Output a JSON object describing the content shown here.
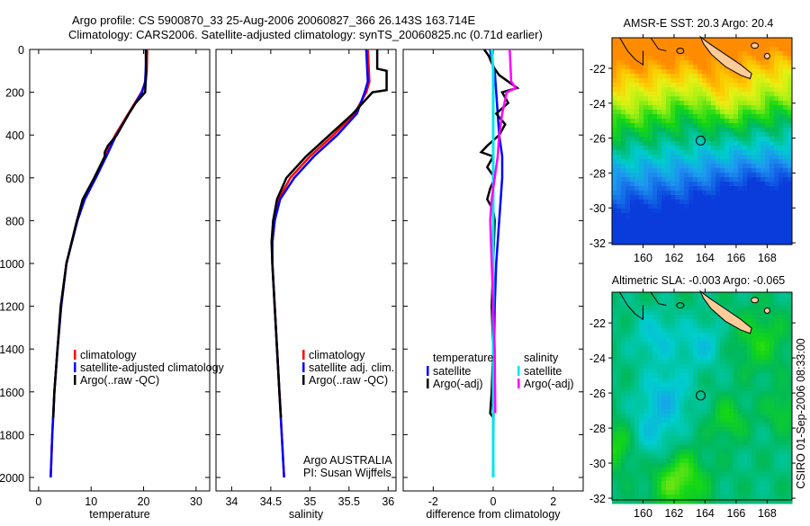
{
  "title_line1": "Argo profile: CS 5900870_33 25-Aug-2006 20060827_366 26.143S 163.714E",
  "title_line2": "Climatology: CARS2006. Satellite-adjusted climatology: synTS_20060825.nc (0.71d earlier)",
  "side_stamp": "CSIRO 01-Sep-2006 08:33:00",
  "colors": {
    "climatology": "#ff0000",
    "satellite": "#0000ff",
    "argo": "#000000",
    "sal_satellite": "#00e5ee",
    "sal_argo": "#ff00ff",
    "land": "#ffcc99"
  },
  "chart_data": [
    {
      "type": "line",
      "xlabel": "temperature",
      "ylabel": "",
      "xlim": [
        -1.7,
        32.6
      ],
      "ylim": [
        2063,
        0
      ],
      "xticks": [
        0,
        10,
        20,
        30
      ],
      "yticks": [
        0,
        200,
        400,
        600,
        800,
        1000,
        1200,
        1400,
        1600,
        1800,
        2000
      ],
      "legend": [
        "climatology",
        "satellite-adjusted climatology",
        "Argo(..raw -QC)"
      ],
      "legend_position": "lower-middle",
      "series": [
        {
          "name": "climatology",
          "color": "#ff0000",
          "depth": [
            0,
            100,
            150,
            200,
            300,
            400,
            500,
            600,
            700,
            800,
            1000,
            1200,
            1400,
            1600,
            1800,
            2000
          ],
          "values": [
            20.7,
            20.6,
            20.4,
            19.6,
            17.1,
            14.6,
            12.6,
            10.6,
            8.6,
            7.3,
            5.3,
            4.3,
            3.6,
            3.0,
            2.6,
            2.3
          ]
        },
        {
          "name": "satellite-adjusted climatology",
          "color": "#0000ff",
          "depth": [
            0,
            100,
            150,
            200,
            300,
            400,
            500,
            600,
            700,
            800,
            1000,
            1200,
            1400,
            1600,
            1800,
            2000
          ],
          "values": [
            20.5,
            20.4,
            20.3,
            19.7,
            17.2,
            14.8,
            12.9,
            10.9,
            8.8,
            7.4,
            5.3,
            4.3,
            3.6,
            3.0,
            2.6,
            2.3
          ]
        },
        {
          "name": "Argo(..raw -QC)",
          "color": "#000000",
          "depth": [
            0,
            100,
            200,
            250,
            300,
            400,
            450,
            480,
            500,
            600,
            700,
            800,
            1000,
            1200,
            1400,
            1600,
            1720
          ],
          "values": [
            20.4,
            20.5,
            20.3,
            18.5,
            17.2,
            14.9,
            13.2,
            12.6,
            12.6,
            10.6,
            8.4,
            7.3,
            5.3,
            4.2,
            3.6,
            3.0,
            2.8
          ]
        }
      ]
    },
    {
      "type": "line",
      "xlabel": "salinity",
      "xlim": [
        33.8,
        36.1
      ],
      "ylim": [
        2063,
        0
      ],
      "xticks": [
        34,
        34.5,
        35,
        35.5,
        36
      ],
      "xtick_labels": [
        "34",
        "34.5",
        "35",
        "35.5",
        "36"
      ],
      "legend": [
        "climatology",
        "satellite adj. clim.",
        "Argo(..raw -QC)"
      ],
      "annotation": [
        "Argo AUSTRALIA",
        "PI: Susan Wijffels"
      ],
      "series": [
        {
          "name": "climatology",
          "color": "#ff0000",
          "depth": [
            0,
            150,
            200,
            300,
            400,
            500,
            600,
            700,
            800,
            900,
            1000,
            1200,
            1400,
            1600,
            1800,
            2000
          ],
          "values": [
            35.74,
            35.76,
            35.72,
            35.57,
            35.3,
            35.0,
            34.75,
            34.6,
            34.55,
            34.52,
            34.52,
            34.55,
            34.58,
            34.61,
            34.64,
            34.67
          ]
        },
        {
          "name": "satellite adj. clim.",
          "color": "#0000ff",
          "depth": [
            0,
            150,
            200,
            300,
            400,
            500,
            600,
            700,
            800,
            900,
            1000,
            1200,
            1400,
            1600,
            1800,
            2000
          ],
          "values": [
            35.72,
            35.74,
            35.7,
            35.6,
            35.35,
            35.05,
            34.8,
            34.62,
            34.55,
            34.52,
            34.52,
            34.55,
            34.58,
            34.61,
            34.64,
            34.67
          ]
        },
        {
          "name": "Argo(..raw -QC)",
          "color": "#000000",
          "depth": [
            0,
            90,
            100,
            190,
            200,
            300,
            400,
            500,
            600,
            700,
            800,
            900,
            1000,
            1200,
            1400,
            1600,
            1720
          ],
          "values": [
            35.86,
            35.86,
            35.98,
            35.98,
            35.8,
            35.55,
            35.25,
            34.95,
            34.7,
            34.58,
            34.53,
            34.51,
            34.52,
            34.55,
            34.58,
            34.61,
            34.63
          ]
        }
      ]
    },
    {
      "type": "line",
      "xlabel": "difference from climatology",
      "xlim": [
        -3,
        3
      ],
      "ylim": [
        2063,
        0
      ],
      "xticks": [
        -2,
        0,
        2
      ],
      "legend_headers": [
        "temperature",
        "salinity"
      ],
      "legend": [
        "satellite",
        "Argo(-adj)",
        "satellite",
        "Argo(-adj)"
      ],
      "series": [
        {
          "name": "temperature satellite",
          "color": "#0000ff",
          "depth": [
            0,
            50,
            100,
            200,
            300,
            400,
            500,
            600,
            700,
            800,
            1000,
            1200,
            1500,
            2000
          ],
          "values": [
            -0.1,
            -0.05,
            0.05,
            0.1,
            0.15,
            0.2,
            0.3,
            0.3,
            0.25,
            0.2,
            0.1,
            0.05,
            0.02,
            0
          ]
        },
        {
          "name": "temperature Argo(-adj)",
          "color": "#000000",
          "depth": [
            0,
            30,
            80,
            120,
            180,
            200,
            250,
            300,
            350,
            400,
            450,
            480,
            500,
            550,
            600,
            650,
            700,
            750,
            800,
            1000,
            1200,
            1400,
            1600,
            1700,
            1720
          ],
          "values": [
            -0.3,
            -0.15,
            0,
            0.2,
            0.8,
            0.3,
            0.5,
            0.1,
            0.4,
            0.2,
            -0.2,
            -0.4,
            0,
            -0.2,
            0.05,
            -0.1,
            -0.2,
            0,
            0.05,
            0,
            -0.05,
            0,
            -0.05,
            -0.1,
            0
          ]
        },
        {
          "name": "salinity satellite",
          "color": "#00e5ee",
          "depth": [
            0,
            100,
            500,
            1000,
            2000
          ],
          "values": [
            -0.05,
            0,
            0,
            0,
            0
          ]
        },
        {
          "name": "salinity Argo(-adj)",
          "color": "#ff00ff",
          "depth": [
            0,
            150,
            180,
            200,
            300,
            400,
            500,
            600,
            700,
            800,
            1000,
            1400,
            1700
          ],
          "values": [
            0.55,
            0.6,
            0.75,
            0.45,
            0.3,
            0.2,
            0.15,
            0.05,
            -0.05,
            -0.1,
            -0.05,
            0.05,
            0.07
          ]
        }
      ]
    }
  ],
  "maps": [
    {
      "title": "AMSR-E SST: 20.3 Argo: 20.4",
      "field": "sst",
      "xlim": [
        158,
        169.6
      ],
      "ylim": [
        -32.1,
        -20.25
      ],
      "xticks": [
        160,
        162,
        164,
        166,
        168
      ],
      "yticks": [
        -22,
        -24,
        -26,
        -28,
        -30,
        -32
      ],
      "float_lon": 163.714,
      "float_lat": -26.143
    },
    {
      "title": "Altimetric SLA: -0.003 Argo: -0.065",
      "field": "sla",
      "xlim": [
        158,
        169.6
      ],
      "ylim": [
        -32.1,
        -20.25
      ],
      "xticks": [
        160,
        162,
        164,
        166,
        168
      ],
      "yticks": [
        -22,
        -24,
        -26,
        -28,
        -30,
        -32
      ],
      "float_lon": 163.714,
      "float_lat": -26.143
    }
  ]
}
